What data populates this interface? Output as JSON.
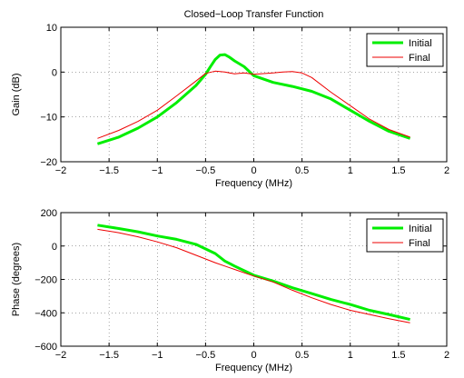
{
  "chart_data": [
    {
      "type": "line",
      "title": "Closed−Loop Transfer Function",
      "xlabel": "Frequency (MHz)",
      "ylabel": "Gain (dB)",
      "xlim": [
        -2,
        2
      ],
      "ylim": [
        -20,
        10
      ],
      "xticks": [
        -2,
        -1.5,
        -1,
        -0.5,
        0,
        0.5,
        1,
        1.5,
        2
      ],
      "xtick_labels": [
        "−2",
        "−1.5",
        "−1",
        "−0.5",
        "0",
        "0.5",
        "1",
        "1.5",
        "2"
      ],
      "yticks": [
        -20,
        -10,
        0,
        10
      ],
      "ytick_labels": [
        "−20",
        "−10",
        "0",
        "10"
      ],
      "grid": true,
      "legend": "top-right",
      "series": [
        {
          "name": "Initial",
          "color": "#00ee00",
          "x": [
            -1.62,
            -1.4,
            -1.2,
            -1.0,
            -0.8,
            -0.6,
            -0.5,
            -0.45,
            -0.4,
            -0.35,
            -0.3,
            -0.25,
            -0.2,
            -0.1,
            0.0,
            0.2,
            0.4,
            0.6,
            0.8,
            1.0,
            1.2,
            1.4,
            1.62
          ],
          "y": [
            -16.0,
            -14.5,
            -12.5,
            -10.0,
            -6.8,
            -3.0,
            -0.5,
            1.2,
            2.8,
            3.8,
            3.9,
            3.3,
            2.5,
            1.2,
            -0.8,
            -2.3,
            -3.2,
            -4.3,
            -6.0,
            -8.5,
            -11.0,
            -13.2,
            -14.8
          ]
        },
        {
          "name": "Final",
          "color": "#ee0000",
          "x": [
            -1.62,
            -1.4,
            -1.2,
            -1.0,
            -0.8,
            -0.6,
            -0.5,
            -0.4,
            -0.3,
            -0.2,
            -0.1,
            0.0,
            0.2,
            0.3,
            0.4,
            0.5,
            0.6,
            0.8,
            1.0,
            1.2,
            1.4,
            1.62
          ],
          "y": [
            -14.8,
            -13.0,
            -11.0,
            -8.5,
            -5.3,
            -2.0,
            -0.3,
            0.2,
            0.0,
            -0.4,
            -0.2,
            -0.5,
            -0.2,
            0.0,
            0.1,
            -0.2,
            -1.2,
            -4.5,
            -7.5,
            -10.5,
            -12.8,
            -14.5
          ]
        }
      ]
    },
    {
      "type": "line",
      "title": "",
      "xlabel": "Frequency (MHz)",
      "ylabel": "Phase (degrees)",
      "xlim": [
        -2,
        2
      ],
      "ylim": [
        -600,
        200
      ],
      "xticks": [
        -2,
        -1.5,
        -1,
        -0.5,
        0,
        0.5,
        1,
        1.5,
        2
      ],
      "xtick_labels": [
        "−2",
        "−1.5",
        "−1",
        "−0.5",
        "0",
        "0.5",
        "1",
        "1.5",
        "2"
      ],
      "yticks": [
        -600,
        -400,
        -200,
        0,
        200
      ],
      "ytick_labels": [
        "−600",
        "−400",
        "−200",
        "0",
        "200"
      ],
      "grid": true,
      "legend": "top-right",
      "series": [
        {
          "name": "Initial",
          "color": "#00ee00",
          "x": [
            -1.62,
            -1.4,
            -1.2,
            -1.0,
            -0.8,
            -0.6,
            -0.4,
            -0.3,
            -0.2,
            0.0,
            0.2,
            0.4,
            0.6,
            0.8,
            1.0,
            1.2,
            1.4,
            1.62
          ],
          "y": [
            125,
            105,
            85,
            60,
            40,
            10,
            -45,
            -90,
            -120,
            -175,
            -210,
            -250,
            -285,
            -320,
            -350,
            -385,
            -410,
            -440
          ]
        },
        {
          "name": "Final",
          "color": "#ee0000",
          "x": [
            -1.62,
            -1.4,
            -1.2,
            -1.0,
            -0.8,
            -0.6,
            -0.4,
            -0.3,
            -0.2,
            0.0,
            0.2,
            0.4,
            0.6,
            0.8,
            1.0,
            1.2,
            1.4,
            1.62
          ],
          "y": [
            100,
            80,
            55,
            25,
            -10,
            -55,
            -100,
            -120,
            -140,
            -180,
            -215,
            -265,
            -310,
            -350,
            -385,
            -410,
            -435,
            -460
          ]
        }
      ]
    }
  ]
}
